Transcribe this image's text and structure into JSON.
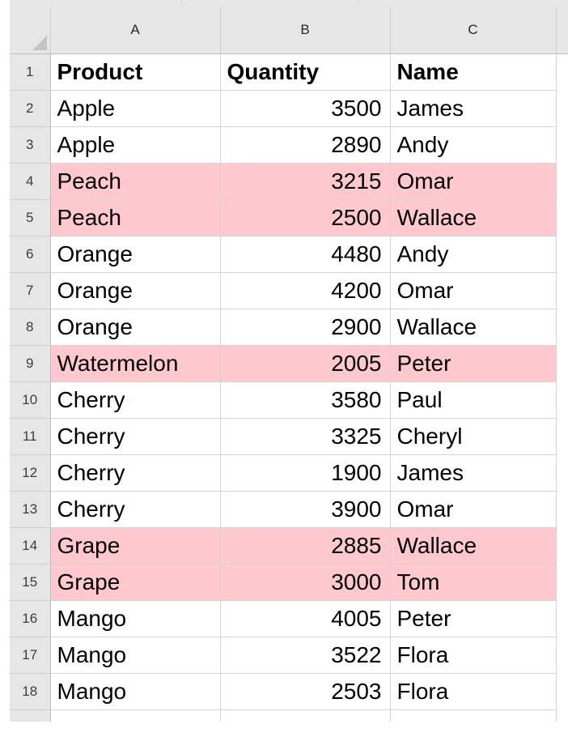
{
  "sheet": {
    "column_headers": [
      "A",
      "B",
      "C"
    ],
    "header_row": {
      "number": "1",
      "a": "Product",
      "b": "Quantity",
      "c": "Name"
    },
    "rows": [
      {
        "number": "2",
        "a": "Apple",
        "b": "3500",
        "c": "James",
        "highlight": false
      },
      {
        "number": "3",
        "a": "Apple",
        "b": "2890",
        "c": "Andy",
        "highlight": false
      },
      {
        "number": "4",
        "a": "Peach",
        "b": "3215",
        "c": "Omar",
        "highlight": true
      },
      {
        "number": "5",
        "a": "Peach",
        "b": "2500",
        "c": "Wallace",
        "highlight": true
      },
      {
        "number": "6",
        "a": "Orange",
        "b": "4480",
        "c": "Andy",
        "highlight": false
      },
      {
        "number": "7",
        "a": "Orange",
        "b": "4200",
        "c": "Omar",
        "highlight": false
      },
      {
        "number": "8",
        "a": "Orange",
        "b": "2900",
        "c": "Wallace",
        "highlight": false
      },
      {
        "number": "9",
        "a": "Watermelon",
        "b": "2005",
        "c": "Peter",
        "highlight": true
      },
      {
        "number": "10",
        "a": "Cherry",
        "b": "3580",
        "c": "Paul",
        "highlight": false
      },
      {
        "number": "11",
        "a": "Cherry",
        "b": "3325",
        "c": "Cheryl",
        "highlight": false
      },
      {
        "number": "12",
        "a": "Cherry",
        "b": "1900",
        "c": "James",
        "highlight": false
      },
      {
        "number": "13",
        "a": "Cherry",
        "b": "3900",
        "c": "Omar",
        "highlight": false
      },
      {
        "number": "14",
        "a": "Grape",
        "b": "2885",
        "c": "Wallace",
        "highlight": true
      },
      {
        "number": "15",
        "a": "Grape",
        "b": "3000",
        "c": "Tom",
        "highlight": true
      },
      {
        "number": "16",
        "a": "Mango",
        "b": "4005",
        "c": "Peter",
        "highlight": false
      },
      {
        "number": "17",
        "a": "Mango",
        "b": "3522",
        "c": "Flora",
        "highlight": false
      },
      {
        "number": "18",
        "a": "Mango",
        "b": "2503",
        "c": "Flora",
        "highlight": false
      }
    ]
  },
  "colors": {
    "highlight_fill": "#ffc7ce",
    "header_bg": "#e6e6e6",
    "gridline": "#d4d4d4"
  }
}
